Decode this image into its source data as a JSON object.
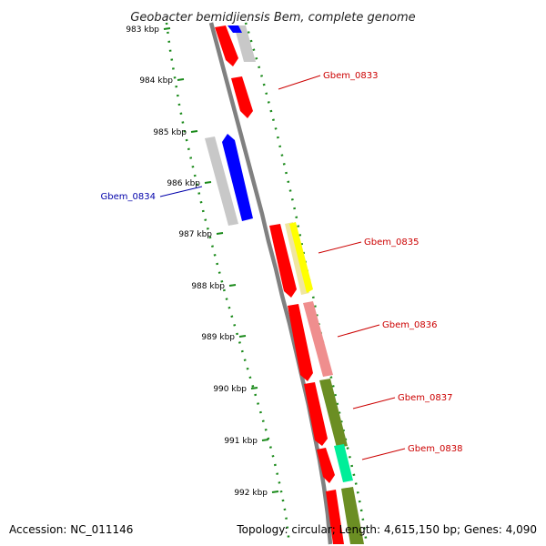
{
  "title": "Geobacter bemidjiensis Bem, complete genome",
  "footer": {
    "accession": "Accession: NC_011146",
    "summary": "Topology: circular; Length: 4,615,150 bp; Genes: 4,090"
  },
  "colors": {
    "backbone": "#808080",
    "ticks": "#1a8a1a",
    "forward_label": "#cc0000",
    "reverse_label": "#0000aa"
  },
  "ticks": [
    {
      "label": "983 kbp"
    },
    {
      "label": "984 kbp"
    },
    {
      "label": "985 kbp"
    },
    {
      "label": "986 kbp"
    },
    {
      "label": "987 kbp"
    },
    {
      "label": "988 kbp"
    },
    {
      "label": "989 kbp"
    },
    {
      "label": "990 kbp"
    },
    {
      "label": "991 kbp"
    },
    {
      "label": "992 kbp"
    }
  ],
  "genes": [
    {
      "name": "Gbem_0833",
      "strand": "forward",
      "color": "#cc0000"
    },
    {
      "name": "Gbem_0834",
      "strand": "reverse",
      "color": "#0000aa"
    },
    {
      "name": "Gbem_0835",
      "strand": "forward",
      "color": "#cc0000"
    },
    {
      "name": "Gbem_0836",
      "strand": "forward",
      "color": "#cc0000"
    },
    {
      "name": "Gbem_0837",
      "strand": "forward",
      "color": "#cc0000"
    },
    {
      "name": "Gbem_0838",
      "strand": "forward",
      "color": "#cc0000"
    }
  ]
}
